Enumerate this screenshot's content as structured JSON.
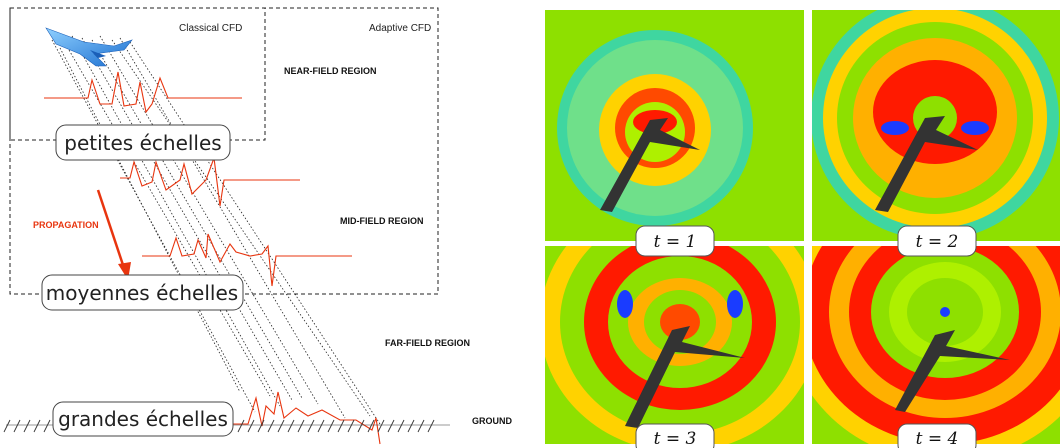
{
  "diagram": {
    "labels": {
      "classical_cfd": "Classical CFD",
      "adaptive_cfd": "Adaptive CFD",
      "near_field": "NEAR-FIELD REGION",
      "mid_field": "MID-FIELD REGION",
      "far_field": "FAR-FIELD REGION",
      "ground": "GROUND",
      "propagation": "PROPAGATION"
    },
    "scales": {
      "small": "petites échelles",
      "medium": "moyennes échelles",
      "large": "grandes échelles"
    }
  },
  "panels": [
    {
      "t": "t = 1",
      "var": "1"
    },
    {
      "t": "t = 2",
      "var": "2"
    },
    {
      "t": "t = 3",
      "var": "3"
    },
    {
      "t": "t = 4",
      "var": "4"
    }
  ],
  "colors": {
    "accent": "#e8350f",
    "field_green": "#8ee000",
    "field_red": "#ff1a00",
    "field_blue": "#1a3cff",
    "aircraft": "#333333"
  }
}
